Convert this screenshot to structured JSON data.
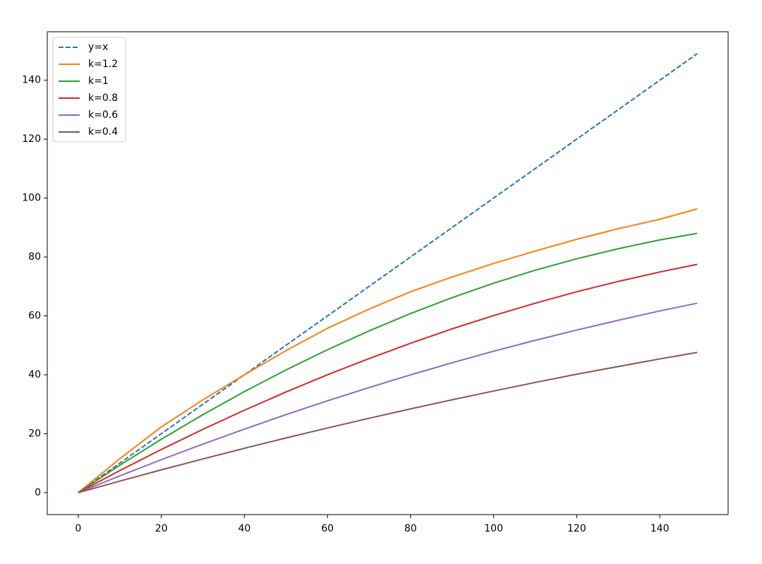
{
  "chart_data": {
    "type": "line",
    "x": [
      0,
      10,
      20,
      30,
      40,
      50,
      60,
      70,
      80,
      90,
      100,
      110,
      120,
      130,
      140,
      149
    ],
    "series": [
      {
        "name": "y=x",
        "color": "#1f77b4",
        "dashed": true,
        "values": [
          0,
          10,
          20,
          30,
          40,
          50,
          60,
          70,
          80,
          90,
          100,
          110,
          120,
          130,
          140,
          149
        ]
      },
      {
        "name": "k=1.2",
        "color": "#ff7f0e",
        "values": [
          0,
          11.5,
          22.3,
          31.5,
          40,
          48.2,
          55.8,
          62.3,
          68.2,
          73.2,
          77.8,
          82.0,
          86.0,
          89.6,
          92.8,
          96.3
        ]
      },
      {
        "name": "k=1",
        "color": "#2ca02c",
        "values": [
          0,
          9.31,
          18.13,
          26.46,
          34.3,
          41.65,
          48.5,
          54.9,
          60.8,
          66.2,
          71.1,
          75.5,
          79.4,
          82.8,
          85.8,
          88.0
        ]
      },
      {
        "name": "k=0.8",
        "color": "#d62728",
        "values": [
          0,
          7.49,
          14.65,
          21.48,
          27.98,
          34.16,
          40.0,
          45.5,
          50.7,
          55.6,
          60.1,
          64.3,
          68.2,
          71.7,
          74.9,
          77.5
        ]
      },
      {
        "name": "k=0.6",
        "color": "#9467bd",
        "values": [
          0,
          5.69,
          11.18,
          16.48,
          21.57,
          26.47,
          31.17,
          35.67,
          39.98,
          44.09,
          48.0,
          51.7,
          55.2,
          58.5,
          61.7,
          64.3
        ]
      },
      {
        "name": "k=0.4",
        "color": "#8c564b",
        "values": [
          0,
          3.92,
          7.73,
          11.44,
          15.05,
          18.55,
          21.95,
          25.24,
          28.43,
          31.52,
          34.5,
          37.4,
          40.2,
          42.8,
          45.4,
          47.6
        ]
      }
    ],
    "xlim": [
      -7.45,
      156.45
    ],
    "ylim": [
      -7.45,
      156.45
    ],
    "xticks": [
      0,
      20,
      40,
      60,
      80,
      100,
      120,
      140
    ],
    "yticks": [
      0,
      20,
      40,
      60,
      80,
      100,
      120,
      140
    ],
    "grid": false,
    "legend": "upper left"
  }
}
